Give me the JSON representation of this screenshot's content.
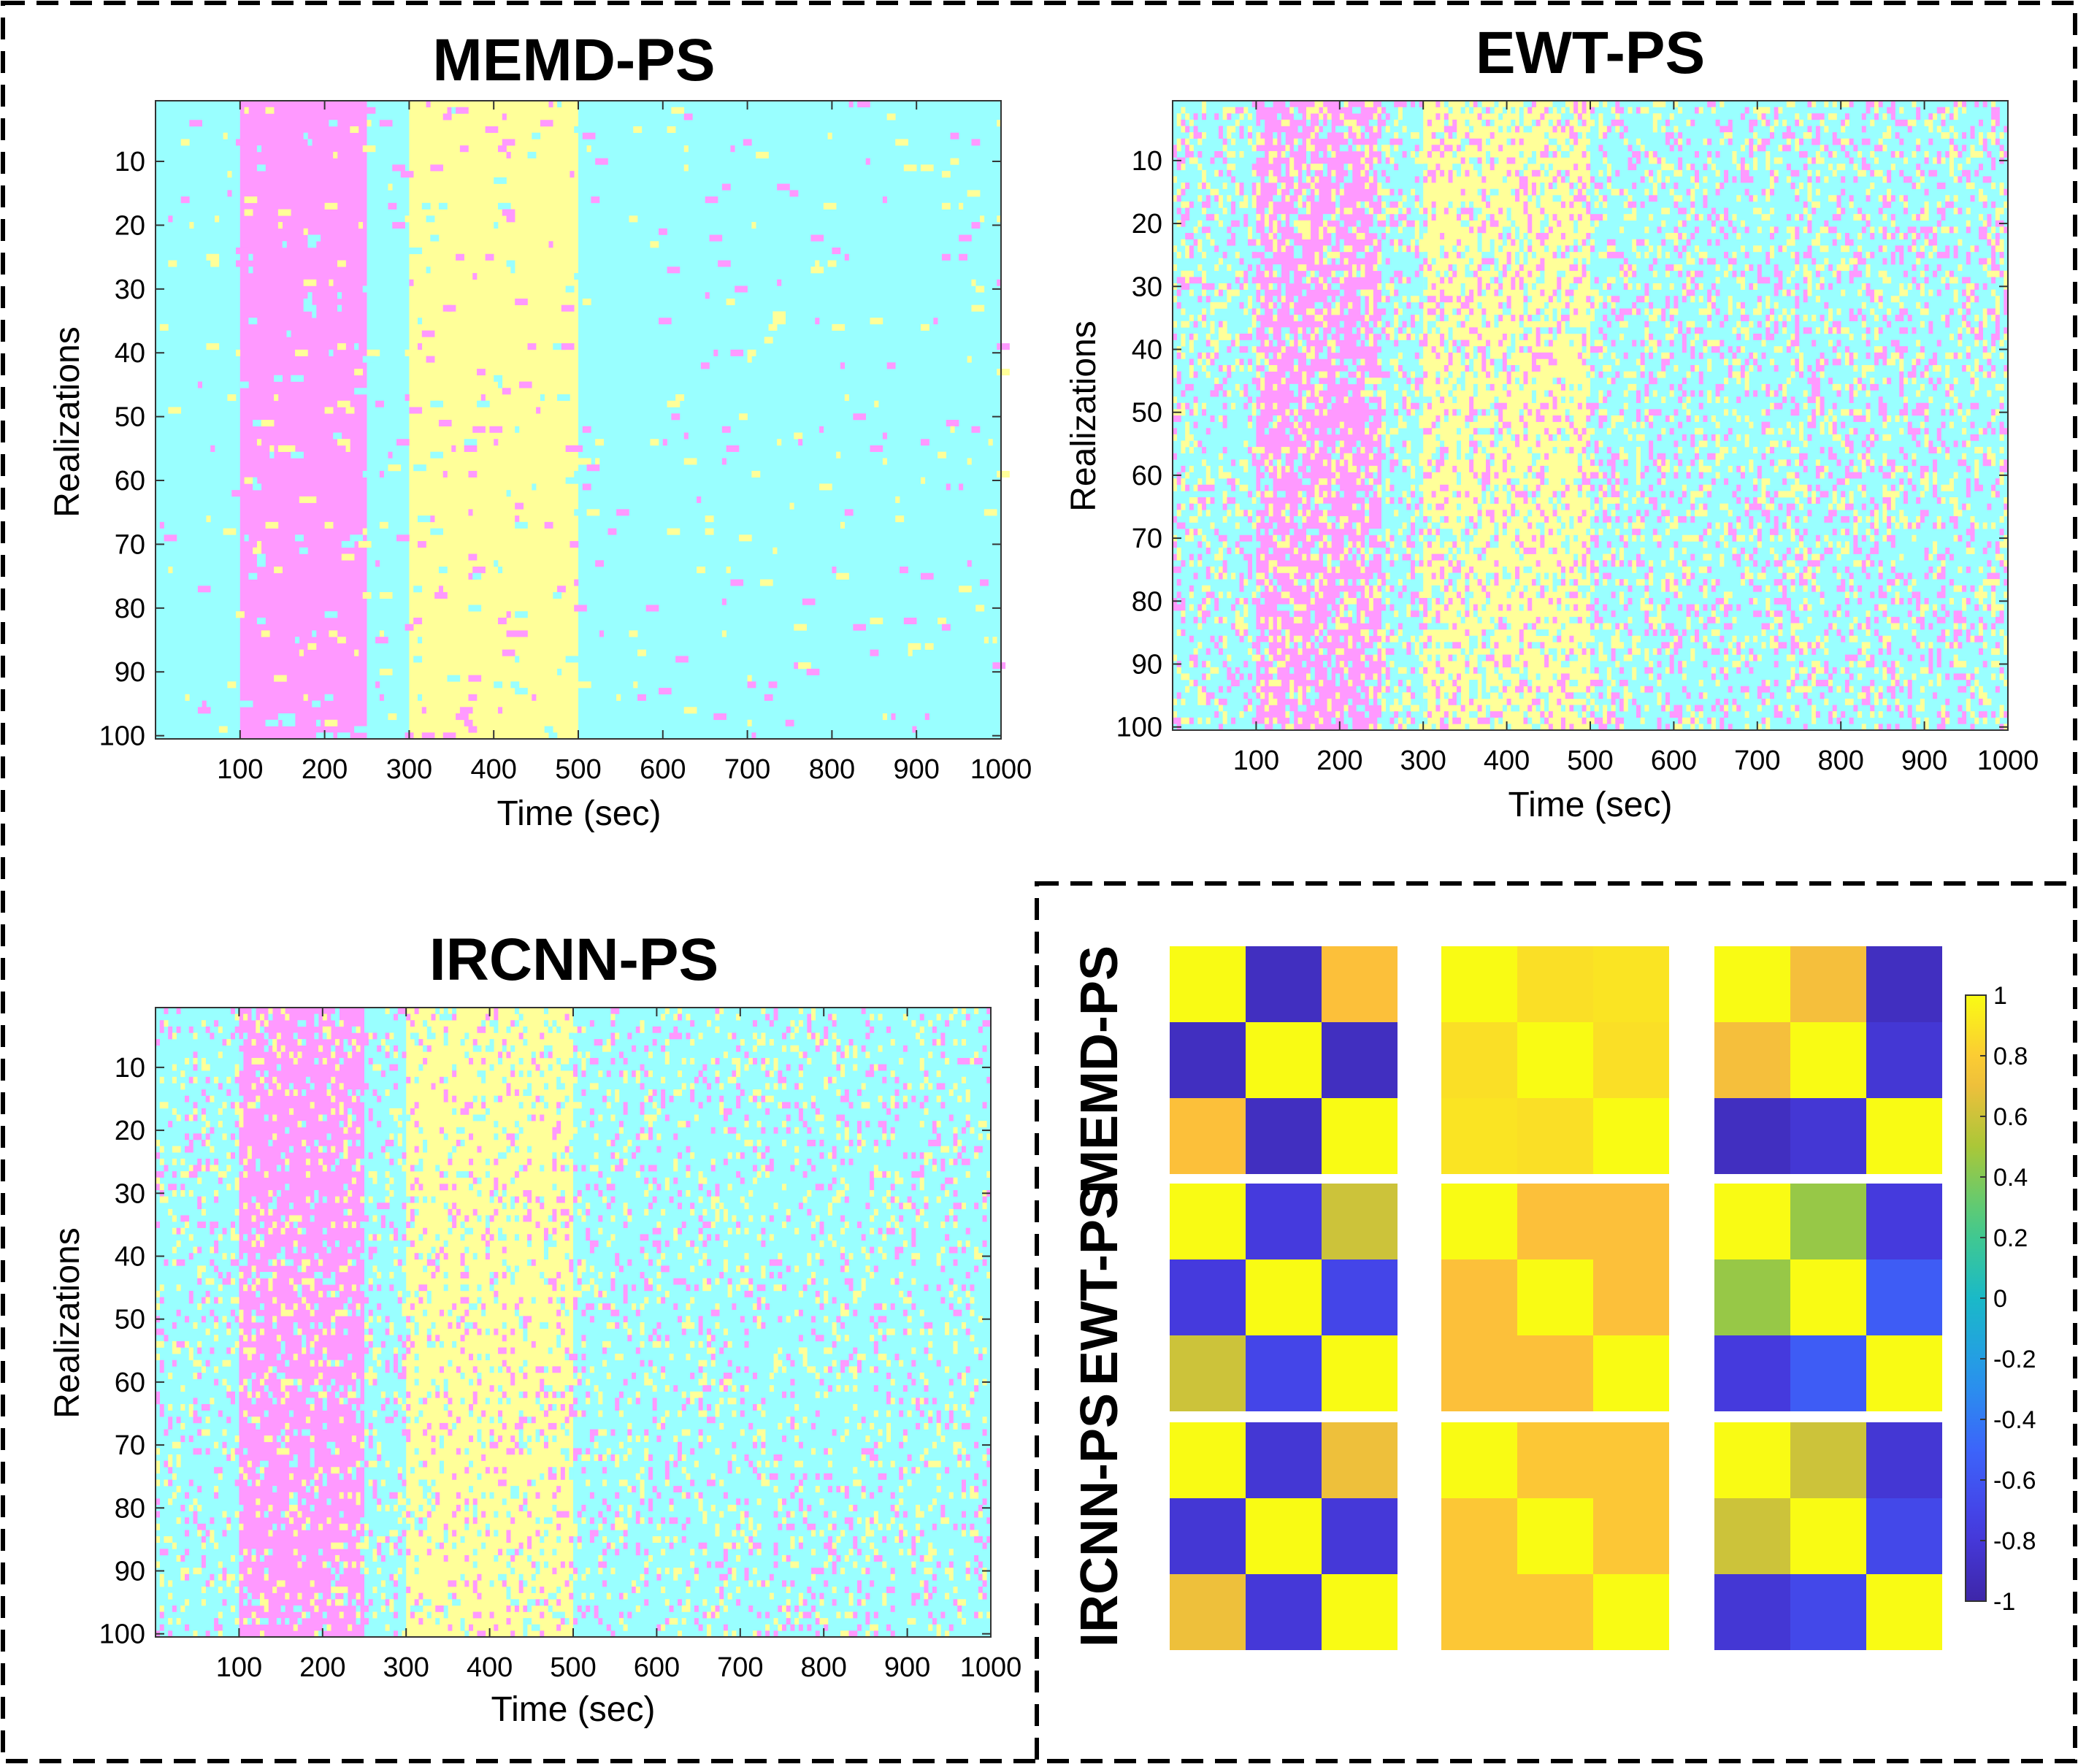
{
  "colors": {
    "cyan": "#99ffff",
    "magenta": "#ff99ff",
    "yellow": "#ffff99",
    "frame": "#000000"
  },
  "chart_data": [
    {
      "type": "heatmap",
      "title": "MEMD-PS",
      "xlabel": "Time (sec)",
      "ylabel": "Realizations",
      "xlim": [
        0,
        1000
      ],
      "ylim": [
        100,
        1
      ],
      "xticks": [
        100,
        200,
        300,
        400,
        500,
        600,
        700,
        800,
        900,
        1000
      ],
      "yticks": [
        10,
        20,
        30,
        40,
        50,
        60,
        70,
        80,
        90,
        100
      ],
      "regimes": [
        {
          "state": "cyan",
          "x": [
            0,
            100
          ]
        },
        {
          "state": "magenta",
          "x": [
            100,
            250
          ]
        },
        {
          "state": "cyan",
          "x": [
            250,
            300
          ]
        },
        {
          "state": "yellow",
          "x": [
            300,
            500
          ]
        },
        {
          "state": "cyan",
          "x": [
            500,
            1000
          ]
        }
      ],
      "noise_level": "low"
    },
    {
      "type": "heatmap",
      "title": "EWT-PS",
      "xlabel": "Time (sec)",
      "ylabel": "Realizations",
      "xlim": [
        0,
        1000
      ],
      "ylim": [
        100,
        1
      ],
      "xticks": [
        100,
        200,
        300,
        400,
        500,
        600,
        700,
        800,
        900,
        1000
      ],
      "yticks": [
        10,
        20,
        30,
        40,
        50,
        60,
        70,
        80,
        90,
        100
      ],
      "regimes": [
        {
          "state": "cyan",
          "x": [
            0,
            100
          ]
        },
        {
          "state": "magenta",
          "x": [
            100,
            250
          ]
        },
        {
          "state": "cyan",
          "x": [
            250,
            300
          ]
        },
        {
          "state": "yellow",
          "x": [
            300,
            500
          ]
        },
        {
          "state": "cyan",
          "x": [
            500,
            1000
          ]
        }
      ],
      "noise_level": "high"
    },
    {
      "type": "heatmap",
      "title": "IRCNN-PS",
      "xlabel": "Time (sec)",
      "ylabel": "Realizations",
      "xlim": [
        0,
        1000
      ],
      "ylim": [
        100,
        1
      ],
      "xticks": [
        100,
        200,
        300,
        400,
        500,
        600,
        700,
        800,
        900,
        1000
      ],
      "yticks": [
        10,
        20,
        30,
        40,
        50,
        60,
        70,
        80,
        90,
        100
      ],
      "regimes": [
        {
          "state": "cyan",
          "x": [
            0,
            100
          ]
        },
        {
          "state": "magenta",
          "x": [
            100,
            250
          ]
        },
        {
          "state": "cyan",
          "x": [
            250,
            300
          ]
        },
        {
          "state": "yellow",
          "x": [
            300,
            500
          ]
        },
        {
          "state": "cyan",
          "x": [
            500,
            1000
          ]
        }
      ],
      "noise_level": "medium"
    },
    {
      "type": "heatmap",
      "row_labels": [
        "MEMD-PS",
        "EWT-PS",
        "IRCNN-PS"
      ],
      "colorbar": {
        "range": [
          -1,
          1
        ],
        "ticks": [
          1,
          0.8,
          0.6,
          0.4,
          0.2,
          0,
          -0.2,
          -0.4,
          -0.6,
          -0.8,
          -1
        ],
        "tick_labels": [
          "1",
          "0.8",
          "0.6",
          "0.4",
          "0.2",
          "0",
          "-0.2",
          "-0.4",
          "-0.6",
          "-0.8",
          "-1"
        ]
      },
      "matrices": [
        [
          [
            [
              1,
              -0.9,
              0.75
            ],
            [
              -0.9,
              1,
              -0.9
            ],
            [
              0.75,
              -0.9,
              1
            ]
          ],
          [
            [
              1,
              0.88,
              0.9
            ],
            [
              0.88,
              1,
              0.88
            ],
            [
              0.9,
              0.88,
              1
            ]
          ],
          [
            [
              1,
              0.72,
              -0.9
            ],
            [
              0.72,
              1,
              -0.82
            ],
            [
              -0.9,
              -0.82,
              1
            ]
          ]
        ],
        [
          [
            [
              1,
              -0.78,
              0.6
            ],
            [
              -0.78,
              1,
              -0.7
            ],
            [
              0.6,
              -0.7,
              1
            ]
          ],
          [
            [
              1,
              0.75,
              0.75
            ],
            [
              0.75,
              1,
              0.75
            ],
            [
              0.75,
              0.75,
              1
            ]
          ],
          [
            [
              1,
              0.45,
              -0.78
            ],
            [
              0.45,
              1,
              -0.55
            ],
            [
              -0.78,
              -0.55,
              1
            ]
          ]
        ],
        [
          [
            [
              1,
              -0.82,
              0.7
            ],
            [
              -0.82,
              1,
              -0.8
            ],
            [
              0.7,
              -0.8,
              1
            ]
          ],
          [
            [
              1,
              0.78,
              0.78
            ],
            [
              0.78,
              1,
              0.78
            ],
            [
              0.78,
              0.78,
              1
            ]
          ],
          [
            [
              1,
              0.6,
              -0.82
            ],
            [
              0.6,
              1,
              -0.68
            ],
            [
              -0.82,
              -0.68,
              1
            ]
          ]
        ]
      ]
    }
  ]
}
